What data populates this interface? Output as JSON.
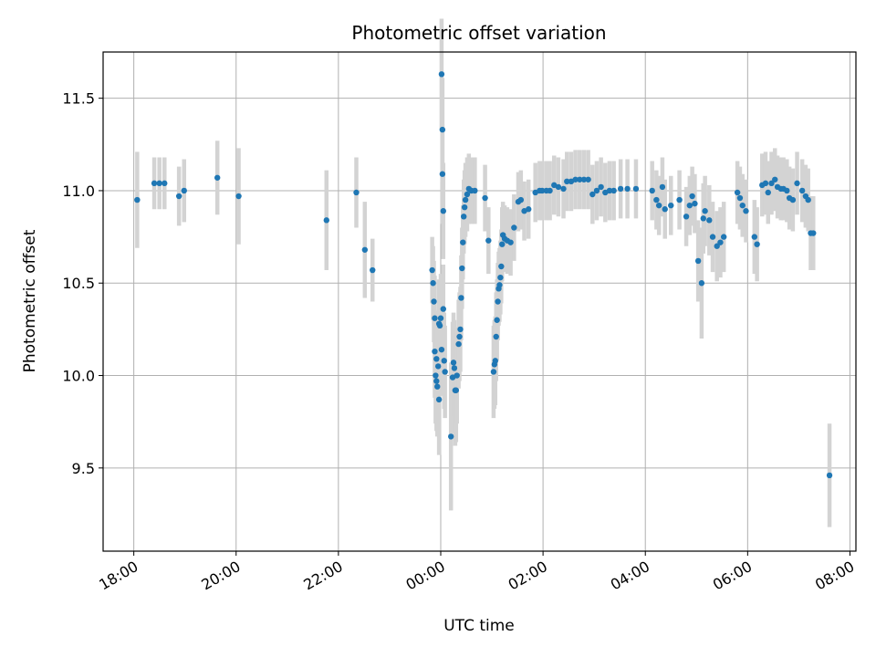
{
  "chart_data": {
    "type": "scatter",
    "title": "Photometric offset variation",
    "xlabel": "UTC time",
    "ylabel": "Photometric offset",
    "x_axis_kind": "time",
    "x_ticks": [
      "18:00",
      "20:00",
      "22:00",
      "00:00",
      "02:00",
      "04:00",
      "06:00",
      "08:00"
    ],
    "y_ticks": [
      "9.5",
      "10.0",
      "10.5",
      "11.0",
      "11.5"
    ],
    "xlim": [
      "17:24",
      "08:07"
    ],
    "ylim": [
      9.05,
      11.75
    ],
    "grid": true,
    "marker_color": "#1f77b4",
    "errorbar_color": "#d3d3d3",
    "points": [
      [
        "18:04",
        10.95,
        0.26
      ],
      [
        "18:24",
        11.04,
        0.14
      ],
      [
        "18:30",
        11.04,
        0.14
      ],
      [
        "18:36",
        11.04,
        0.14
      ],
      [
        "18:53",
        10.97,
        0.16
      ],
      [
        "18:59",
        11.0,
        0.17
      ],
      [
        "19:38",
        11.07,
        0.2
      ],
      [
        "20:03",
        10.97,
        0.26
      ],
      [
        "21:46",
        10.84,
        0.27
      ],
      [
        "22:21",
        10.99,
        0.19
      ],
      [
        "22:31",
        10.68,
        0.26
      ],
      [
        "22:40",
        10.57,
        0.17
      ],
      [
        "23:50",
        10.57,
        0.18
      ],
      [
        "23:51",
        10.5,
        0.2
      ],
      [
        "23:52",
        10.4,
        0.22
      ],
      [
        "23:53",
        10.31,
        0.23
      ],
      [
        "23:53",
        10.13,
        0.25
      ],
      [
        "23:54",
        10.0,
        0.26
      ],
      [
        "23:55",
        9.97,
        0.27
      ],
      [
        "23:55",
        10.09,
        0.26
      ],
      [
        "23:56",
        9.94,
        0.27
      ],
      [
        "23:57",
        10.05,
        0.26
      ],
      [
        "23:58",
        9.87,
        0.3
      ],
      [
        "23:58",
        10.28,
        0.24
      ],
      [
        "23:59",
        10.27,
        0.24
      ],
      [
        "00:00",
        10.31,
        0.24
      ],
      [
        "00:01",
        10.14,
        0.25
      ],
      [
        "00:01",
        11.63,
        0.3
      ],
      [
        "00:02",
        11.33,
        0.28
      ],
      [
        "00:02",
        11.09,
        0.27
      ],
      [
        "00:03",
        10.89,
        0.26
      ],
      [
        "00:03",
        10.36,
        0.24
      ],
      [
        "00:04",
        10.08,
        0.26
      ],
      [
        "00:05",
        10.02,
        0.25
      ],
      [
        "00:12",
        9.67,
        0.4
      ],
      [
        "00:14",
        9.99,
        0.3
      ],
      [
        "00:15",
        10.07,
        0.27
      ],
      [
        "00:16",
        10.04,
        0.26
      ],
      [
        "00:17",
        9.92,
        0.3
      ],
      [
        "00:18",
        9.92,
        0.28
      ],
      [
        "00:19",
        10.0,
        0.26
      ],
      [
        "00:21",
        10.17,
        0.24
      ],
      [
        "00:22",
        10.21,
        0.24
      ],
      [
        "00:23",
        10.25,
        0.23
      ],
      [
        "00:24",
        10.42,
        0.23
      ],
      [
        "00:25",
        10.58,
        0.22
      ],
      [
        "00:26",
        10.72,
        0.2
      ],
      [
        "00:27",
        10.86,
        0.2
      ],
      [
        "00:28",
        10.91,
        0.2
      ],
      [
        "00:29",
        10.95,
        0.2
      ],
      [
        "00:31",
        10.98,
        0.2
      ],
      [
        "00:33",
        11.01,
        0.19
      ],
      [
        "00:36",
        11.0,
        0.18
      ],
      [
        "00:40",
        11.0,
        0.18
      ],
      [
        "00:52",
        10.96,
        0.18
      ],
      [
        "00:56",
        10.73,
        0.18
      ],
      [
        "01:02",
        10.02,
        0.25
      ],
      [
        "01:03",
        10.06,
        0.24
      ],
      [
        "01:04",
        10.08,
        0.24
      ],
      [
        "01:05",
        10.21,
        0.24
      ],
      [
        "01:06",
        10.3,
        0.22
      ],
      [
        "01:07",
        10.4,
        0.21
      ],
      [
        "01:08",
        10.47,
        0.2
      ],
      [
        "01:09",
        10.49,
        0.2
      ],
      [
        "01:10",
        10.53,
        0.2
      ],
      [
        "01:11",
        10.59,
        0.2
      ],
      [
        "01:12",
        10.71,
        0.2
      ],
      [
        "01:13",
        10.76,
        0.18
      ],
      [
        "01:15",
        10.74,
        0.18
      ],
      [
        "01:18",
        10.73,
        0.18
      ],
      [
        "01:22",
        10.72,
        0.18
      ],
      [
        "01:26",
        10.8,
        0.18
      ],
      [
        "01:31",
        10.94,
        0.16
      ],
      [
        "01:34",
        10.95,
        0.16
      ],
      [
        "01:38",
        10.89,
        0.16
      ],
      [
        "01:43",
        10.9,
        0.16
      ],
      [
        "01:51",
        10.99,
        0.16
      ],
      [
        "01:56",
        11.0,
        0.16
      ],
      [
        "01:59",
        11.0,
        0.16
      ],
      [
        "02:04",
        11.0,
        0.16
      ],
      [
        "02:08",
        11.0,
        0.16
      ],
      [
        "02:13",
        11.03,
        0.16
      ],
      [
        "02:18",
        11.02,
        0.16
      ],
      [
        "02:24",
        11.01,
        0.16
      ],
      [
        "02:28",
        11.05,
        0.16
      ],
      [
        "02:33",
        11.05,
        0.16
      ],
      [
        "02:38",
        11.06,
        0.16
      ],
      [
        "02:43",
        11.06,
        0.16
      ],
      [
        "02:48",
        11.06,
        0.16
      ],
      [
        "02:53",
        11.06,
        0.16
      ],
      [
        "02:58",
        10.98,
        0.16
      ],
      [
        "03:03",
        11.0,
        0.16
      ],
      [
        "03:08",
        11.02,
        0.16
      ],
      [
        "03:13",
        10.99,
        0.16
      ],
      [
        "03:18",
        11.0,
        0.16
      ],
      [
        "03:23",
        11.0,
        0.16
      ],
      [
        "03:31",
        11.01,
        0.16
      ],
      [
        "03:39",
        11.01,
        0.16
      ],
      [
        "03:49",
        11.01,
        0.16
      ],
      [
        "04:08",
        11.0,
        0.16
      ],
      [
        "04:13",
        10.95,
        0.16
      ],
      [
        "04:16",
        10.92,
        0.16
      ],
      [
        "04:20",
        11.02,
        0.16
      ],
      [
        "04:23",
        10.9,
        0.16
      ],
      [
        "04:30",
        10.92,
        0.16
      ],
      [
        "04:40",
        10.95,
        0.16
      ],
      [
        "04:48",
        10.86,
        0.16
      ],
      [
        "04:52",
        10.92,
        0.16
      ],
      [
        "04:55",
        10.97,
        0.16
      ],
      [
        "04:58",
        10.93,
        0.16
      ],
      [
        "05:02",
        10.62,
        0.22
      ],
      [
        "05:06",
        10.5,
        0.3
      ],
      [
        "05:08",
        10.85,
        0.19
      ],
      [
        "05:10",
        10.89,
        0.19
      ],
      [
        "05:15",
        10.84,
        0.19
      ],
      [
        "05:19",
        10.75,
        0.19
      ],
      [
        "05:24",
        10.7,
        0.19
      ],
      [
        "05:28",
        10.72,
        0.19
      ],
      [
        "05:32",
        10.75,
        0.19
      ],
      [
        "05:48",
        10.99,
        0.17
      ],
      [
        "05:51",
        10.96,
        0.17
      ],
      [
        "05:54",
        10.92,
        0.17
      ],
      [
        "05:58",
        10.89,
        0.17
      ],
      [
        "06:08",
        10.75,
        0.2
      ],
      [
        "06:11",
        10.71,
        0.2
      ],
      [
        "06:17",
        11.03,
        0.17
      ],
      [
        "06:21",
        11.04,
        0.17
      ],
      [
        "06:24",
        10.99,
        0.17
      ],
      [
        "06:28",
        11.04,
        0.17
      ],
      [
        "06:32",
        11.06,
        0.17
      ],
      [
        "06:35",
        11.02,
        0.17
      ],
      [
        "06:39",
        11.01,
        0.17
      ],
      [
        "06:42",
        11.01,
        0.17
      ],
      [
        "06:46",
        11.0,
        0.17
      ],
      [
        "06:49",
        10.96,
        0.17
      ],
      [
        "06:53",
        10.95,
        0.17
      ],
      [
        "06:58",
        11.04,
        0.17
      ],
      [
        "07:04",
        11.0,
        0.17
      ],
      [
        "07:08",
        10.97,
        0.17
      ],
      [
        "07:11",
        10.95,
        0.17
      ],
      [
        "07:14",
        10.77,
        0.2
      ],
      [
        "07:17",
        10.77,
        0.2
      ],
      [
        "07:36",
        9.46,
        0.28
      ]
    ]
  }
}
